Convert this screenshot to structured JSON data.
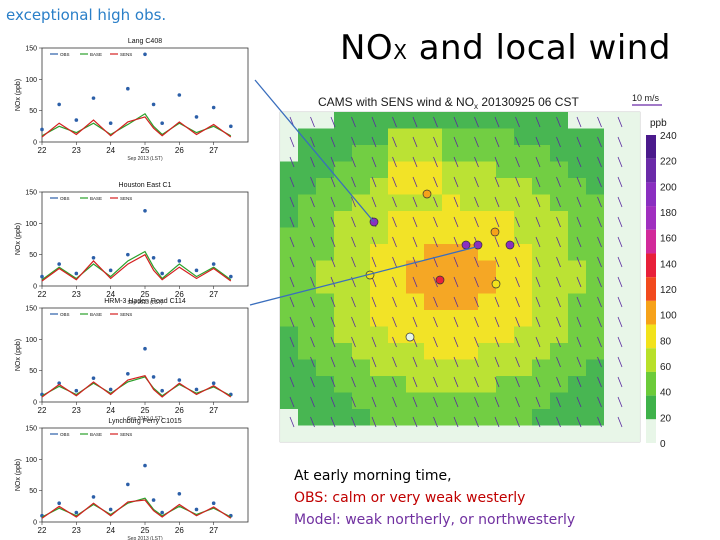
{
  "header": {
    "corner_label": "exceptional high obs.",
    "title_main": "NO",
    "title_sub": "X",
    "title_rest": " and local wind"
  },
  "map": {
    "title": "CAMS with SENS wind & NO",
    "title_sub": "x",
    "title_time": " 20130925 06 CST",
    "wind_ref": "10 m/s",
    "colorbar_unit": "ppb",
    "colorbar_labels": [
      "240",
      "220",
      "200",
      "180",
      "160",
      "140",
      "120",
      "100",
      "80",
      "60",
      "40",
      "20",
      "0"
    ],
    "colorbar_colors": [
      "#4b1a8c",
      "#6a2aa8",
      "#8a2fc0",
      "#a02fbf",
      "#d22a9a",
      "#e8203a",
      "#f24a1e",
      "#f6a21a",
      "#f2e21c",
      "#b8e02a",
      "#6ccb3a",
      "#3fb24a",
      "#e8f6e8"
    ],
    "accent_line_color": "#3a6ebd"
  },
  "captions": {
    "line1": "At early morning time,",
    "line2": "OBS: calm or very weak westerly",
    "line3": "Model: weak northerly, or northwesterly",
    "line2_color": "#c00000",
    "line3_color": "#7030a0"
  },
  "chart_data": [
    {
      "type": "line",
      "title": "Lang C408",
      "ylabel": "NOx (ppb)",
      "xlabel": "Sep 2013 (LST)",
      "ylim": [
        0,
        150
      ],
      "yticks": [
        "0",
        "50",
        "100",
        "150"
      ],
      "xticks": [
        "22",
        "23",
        "24",
        "25",
        "26",
        "27"
      ],
      "legend": [
        "OBS",
        "BASE",
        "SENS"
      ],
      "x": [
        22,
        22.5,
        23,
        23.5,
        24,
        24.5,
        25,
        25.25,
        25.5,
        26,
        26.5,
        27,
        27.5
      ],
      "series": [
        {
          "name": "OBS",
          "values": [
            20,
            60,
            35,
            70,
            30,
            85,
            140,
            60,
            30,
            75,
            40,
            55,
            25
          ]
        },
        {
          "name": "BASE",
          "values": [
            10,
            25,
            15,
            30,
            12,
            28,
            45,
            25,
            12,
            30,
            15,
            25,
            10
          ]
        },
        {
          "name": "SENS",
          "values": [
            8,
            30,
            12,
            35,
            10,
            32,
            40,
            22,
            10,
            32,
            12,
            28,
            8
          ]
        }
      ]
    },
    {
      "type": "line",
      "title": "Houston East C1",
      "ylabel": "NOx (ppb)",
      "xlabel": "Sep 2013 (LST)",
      "ylim": [
        0,
        150
      ],
      "yticks": [
        "0",
        "50",
        "100",
        "150"
      ],
      "xticks": [
        "22",
        "23",
        "24",
        "25",
        "26",
        "27"
      ],
      "legend": [
        "OBS",
        "BASE",
        "SENS"
      ],
      "x": [
        22,
        22.5,
        23,
        23.5,
        24,
        24.5,
        25,
        25.25,
        25.5,
        26,
        26.5,
        27,
        27.5
      ],
      "series": [
        {
          "name": "OBS",
          "values": [
            15,
            35,
            20,
            45,
            25,
            50,
            120,
            45,
            20,
            40,
            25,
            35,
            15
          ]
        },
        {
          "name": "BASE",
          "values": [
            10,
            30,
            12,
            35,
            15,
            40,
            55,
            30,
            12,
            35,
            15,
            30,
            10
          ]
        },
        {
          "name": "SENS",
          "values": [
            8,
            28,
            10,
            40,
            12,
            35,
            50,
            25,
            10,
            30,
            12,
            28,
            8
          ]
        }
      ]
    },
    {
      "type": "line",
      "title": "HRM-3 Haden Road C114",
      "ylabel": "NOx (ppb)",
      "xlabel": "Sep 2013 (LST)",
      "ylim": [
        0,
        150
      ],
      "yticks": [
        "0",
        "50",
        "100",
        "150"
      ],
      "xticks": [
        "22",
        "23",
        "24",
        "25",
        "26",
        "27"
      ],
      "legend": [
        "OBS",
        "BASE",
        "SENS"
      ],
      "x": [
        22,
        22.5,
        23,
        23.5,
        24,
        24.5,
        25,
        25.25,
        25.5,
        26,
        26.5,
        27,
        27.5
      ],
      "series": [
        {
          "name": "OBS",
          "values": [
            12,
            30,
            18,
            38,
            20,
            45,
            85,
            40,
            18,
            35,
            20,
            30,
            12
          ]
        },
        {
          "name": "BASE",
          "values": [
            10,
            25,
            12,
            30,
            14,
            32,
            40,
            22,
            10,
            28,
            14,
            24,
            10
          ]
        },
        {
          "name": "SENS",
          "values": [
            8,
            28,
            10,
            32,
            12,
            35,
            42,
            20,
            8,
            30,
            12,
            26,
            8
          ]
        }
      ]
    },
    {
      "type": "line",
      "title": "Lynchburg Ferry C1015",
      "ylabel": "NOx (ppb)",
      "xlabel": "Sep 2013 (LST)",
      "ylim": [
        0,
        150
      ],
      "yticks": [
        "0",
        "50",
        "100",
        "150"
      ],
      "xticks": [
        "22",
        "23",
        "24",
        "25",
        "26",
        "27"
      ],
      "legend": [
        "OBS",
        "BASE",
        "SENS"
      ],
      "x": [
        22,
        22.5,
        23,
        23.5,
        24,
        24.5,
        25,
        25.25,
        25.5,
        26,
        26.5,
        27,
        27.5
      ],
      "series": [
        {
          "name": "OBS",
          "values": [
            10,
            30,
            15,
            40,
            20,
            60,
            90,
            35,
            15,
            45,
            20,
            30,
            10
          ]
        },
        {
          "name": "BASE",
          "values": [
            8,
            22,
            10,
            28,
            12,
            30,
            38,
            20,
            10,
            25,
            12,
            22,
            8
          ]
        },
        {
          "name": "SENS",
          "values": [
            6,
            25,
            8,
            30,
            10,
            32,
            35,
            18,
            8,
            28,
            10,
            24,
            6
          ]
        }
      ]
    }
  ]
}
